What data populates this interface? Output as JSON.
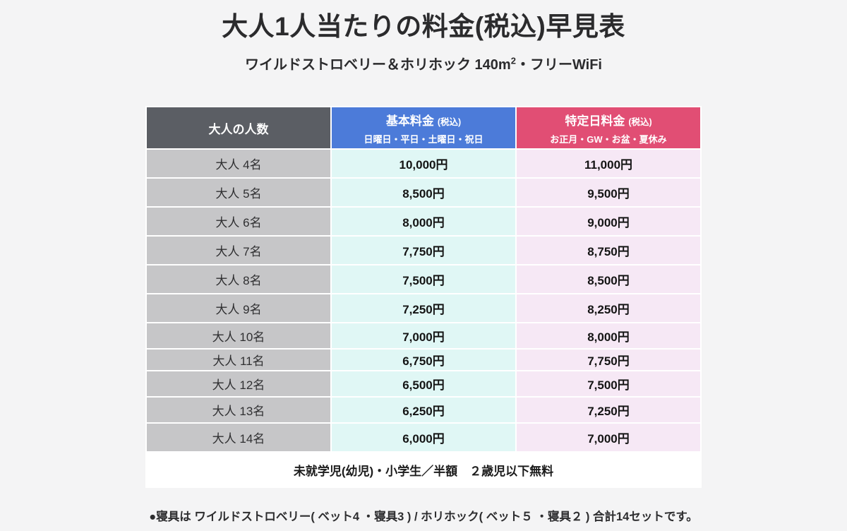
{
  "page": {
    "title": "大人1人当たりの料金(税込)早見表",
    "subtitle": "ワイルドストロベリー＆ホリホック 140m",
    "subtitle_sup": "2",
    "subtitle_tail": "・フリーWiFi",
    "note": "●寝具は ワイルドストロベリー( ベット4 ・寝具3 ) / ホリホック( ベット５ ・寝具２ ) 合計14セットです。"
  },
  "table": {
    "columns": {
      "people": {
        "label": "大人の人数"
      },
      "basic": {
        "label": "基本料金",
        "tax": "(税込)",
        "sub": "日曜日・平日・土曜日・祝日"
      },
      "special": {
        "label": "特定日料金",
        "tax": "(税込)",
        "sub": "お正月・GW・お盆・夏休み"
      }
    },
    "rows": [
      {
        "label": "大人 4名",
        "basic": "10,000円",
        "special": "11,000円"
      },
      {
        "label": "大人 5名",
        "basic": "8,500円",
        "special": "9,500円"
      },
      {
        "label": "大人 6名",
        "basic": "8,000円",
        "special": "9,000円"
      },
      {
        "label": "大人 7名",
        "basic": "7,750円",
        "special": "8,750円"
      },
      {
        "label": "大人 8名",
        "basic": "7,500円",
        "special": "8,500円"
      },
      {
        "label": "大人 9名",
        "basic": "7,250円",
        "special": "8,250円"
      },
      {
        "label": "大人 10名",
        "basic": "7,000円",
        "special": "8,000円"
      },
      {
        "label": "大人 11名",
        "basic": "6,750円",
        "special": "7,750円"
      },
      {
        "label": "大人 12名",
        "basic": "6,500円",
        "special": "7,500円"
      },
      {
        "label": "大人 13名",
        "basic": "6,250円",
        "special": "7,250円"
      },
      {
        "label": "大人 14名",
        "basic": "6,000円",
        "special": "7,000円"
      }
    ],
    "footer": "未就学児(幼児)・小学生／半額　２歳児以下無料"
  },
  "colors": {
    "page_bg": "#f4f4f5",
    "people_header_bg": "#5b5e64",
    "basic_header_bg": "#4c7bd9",
    "special_header_bg": "#e14e74",
    "people_cell_bg": "#c6c6c8",
    "basic_cell_bg": "#e0f7f5",
    "special_cell_bg": "#f6e8f5",
    "header_text": "#ffffff"
  }
}
